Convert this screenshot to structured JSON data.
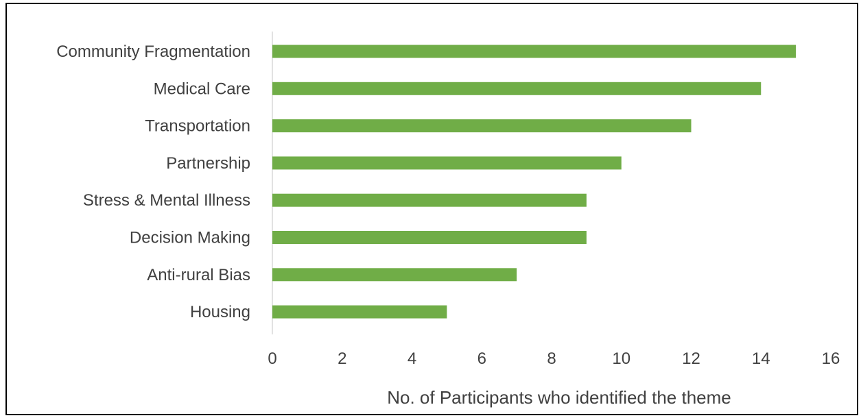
{
  "chart_data": {
    "type": "bar",
    "orientation": "horizontal",
    "categories": [
      "Community Fragmentation",
      "Medical Care",
      "Transportation",
      "Partnership",
      "Stress & Mental Illness",
      "Decision Making",
      "Anti-rural Bias",
      "Housing"
    ],
    "values": [
      15,
      14,
      12,
      10,
      9,
      9,
      7,
      5
    ],
    "xlabel": "No. of Participants who identified the theme",
    "ylabel": "",
    "title": "",
    "xlim": [
      0,
      16
    ],
    "xticks": [
      "0",
      "2",
      "4",
      "6",
      "8",
      "10",
      "12",
      "14",
      "16"
    ],
    "grid": false,
    "legend": "none",
    "colors": {
      "bar": "#70ad47",
      "axis_line": "#d9d9d9",
      "text": "#404040",
      "frame": "#000000"
    }
  }
}
